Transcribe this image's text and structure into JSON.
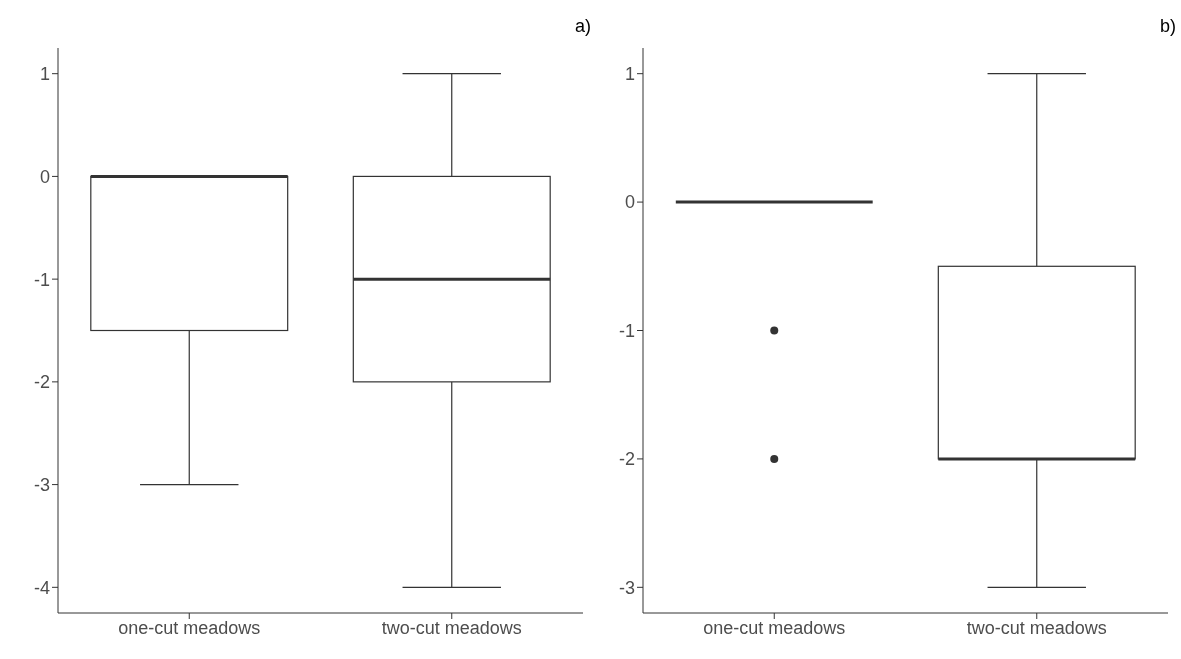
{
  "chart_data": [
    {
      "type": "box",
      "title": "a)",
      "categories": [
        "one-cut meadows",
        "two-cut meadows"
      ],
      "boxes": [
        {
          "low": -3,
          "q1": -1.5,
          "median": 0,
          "q3": 0,
          "high": 0
        },
        {
          "low": -4,
          "q1": -2,
          "median": -1,
          "q3": 0,
          "high": 1
        }
      ],
      "ylim": [
        -4.25,
        1.25
      ],
      "yticks": [
        -4,
        -3,
        -2,
        -1,
        0,
        1
      ]
    },
    {
      "type": "box",
      "title": "b)",
      "categories": [
        "one-cut meadows",
        "two-cut meadows"
      ],
      "boxes": [
        {
          "low": 0,
          "q1": 0,
          "median": 0,
          "q3": 0,
          "high": 0,
          "outliers": [
            -1,
            -2
          ]
        },
        {
          "low": -3,
          "q1": -2,
          "median": -2,
          "q3": -0.5,
          "high": 1
        }
      ],
      "ylim": [
        -3.2,
        1.2
      ],
      "yticks": [
        -3,
        -2,
        -1,
        0,
        1
      ]
    }
  ]
}
